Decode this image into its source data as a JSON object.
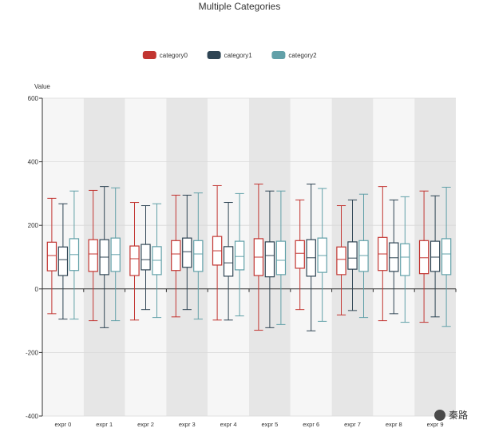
{
  "chart_data": {
    "type": "boxplot",
    "title": "Multiple Categories",
    "ylabel": "Value",
    "ylim": [
      -400,
      600
    ],
    "yticks": [
      "600",
      "400",
      "200",
      "0",
      "-200",
      "-400"
    ],
    "categories": [
      "expr 0",
      "expr 1",
      "expr 2",
      "expr 3",
      "expr 4",
      "expr 5",
      "expr 6",
      "expr 7",
      "expr 8",
      "expr 9"
    ],
    "legend_position": "top-center",
    "series": [
      {
        "name": "category0",
        "color": "#c23531",
        "boxes": [
          [
            -78,
            57,
            105,
            147,
            285
          ],
          [
            -100,
            55,
            110,
            155,
            310
          ],
          [
            -98,
            42,
            95,
            135,
            272
          ],
          [
            -88,
            58,
            110,
            152,
            295
          ],
          [
            -98,
            75,
            120,
            165,
            325
          ],
          [
            -130,
            42,
            100,
            158,
            330
          ],
          [
            -65,
            65,
            112,
            152,
            280
          ],
          [
            -82,
            45,
            93,
            132,
            262
          ],
          [
            -100,
            58,
            110,
            162,
            322
          ],
          [
            -105,
            48,
            98,
            152,
            308
          ]
        ]
      },
      {
        "name": "category1",
        "color": "#2f4554",
        "boxes": [
          [
            -95,
            42,
            92,
            132,
            268
          ],
          [
            -122,
            45,
            100,
            155,
            322
          ],
          [
            -65,
            60,
            92,
            140,
            262
          ],
          [
            -65,
            68,
            117,
            160,
            295
          ],
          [
            -98,
            40,
            82,
            133,
            272
          ],
          [
            -122,
            38,
            105,
            148,
            308
          ],
          [
            -132,
            40,
            98,
            155,
            330
          ],
          [
            -68,
            62,
            97,
            148,
            280
          ],
          [
            -78,
            55,
            98,
            145,
            280
          ],
          [
            -88,
            55,
            100,
            150,
            293
          ]
        ]
      },
      {
        "name": "category2",
        "color": "#61a0a8",
        "boxes": [
          [
            -95,
            58,
            108,
            158,
            308
          ],
          [
            -100,
            55,
            108,
            160,
            318
          ],
          [
            -90,
            45,
            90,
            133,
            268
          ],
          [
            -95,
            55,
            110,
            152,
            302
          ],
          [
            -85,
            60,
            102,
            150,
            300
          ],
          [
            -112,
            45,
            90,
            150,
            308
          ],
          [
            -102,
            52,
            105,
            160,
            316
          ],
          [
            -90,
            55,
            105,
            152,
            298
          ],
          [
            -105,
            42,
            100,
            142,
            290
          ],
          [
            -118,
            45,
            110,
            158,
            320
          ]
        ]
      }
    ]
  },
  "watermark": {
    "text": "秦路"
  }
}
